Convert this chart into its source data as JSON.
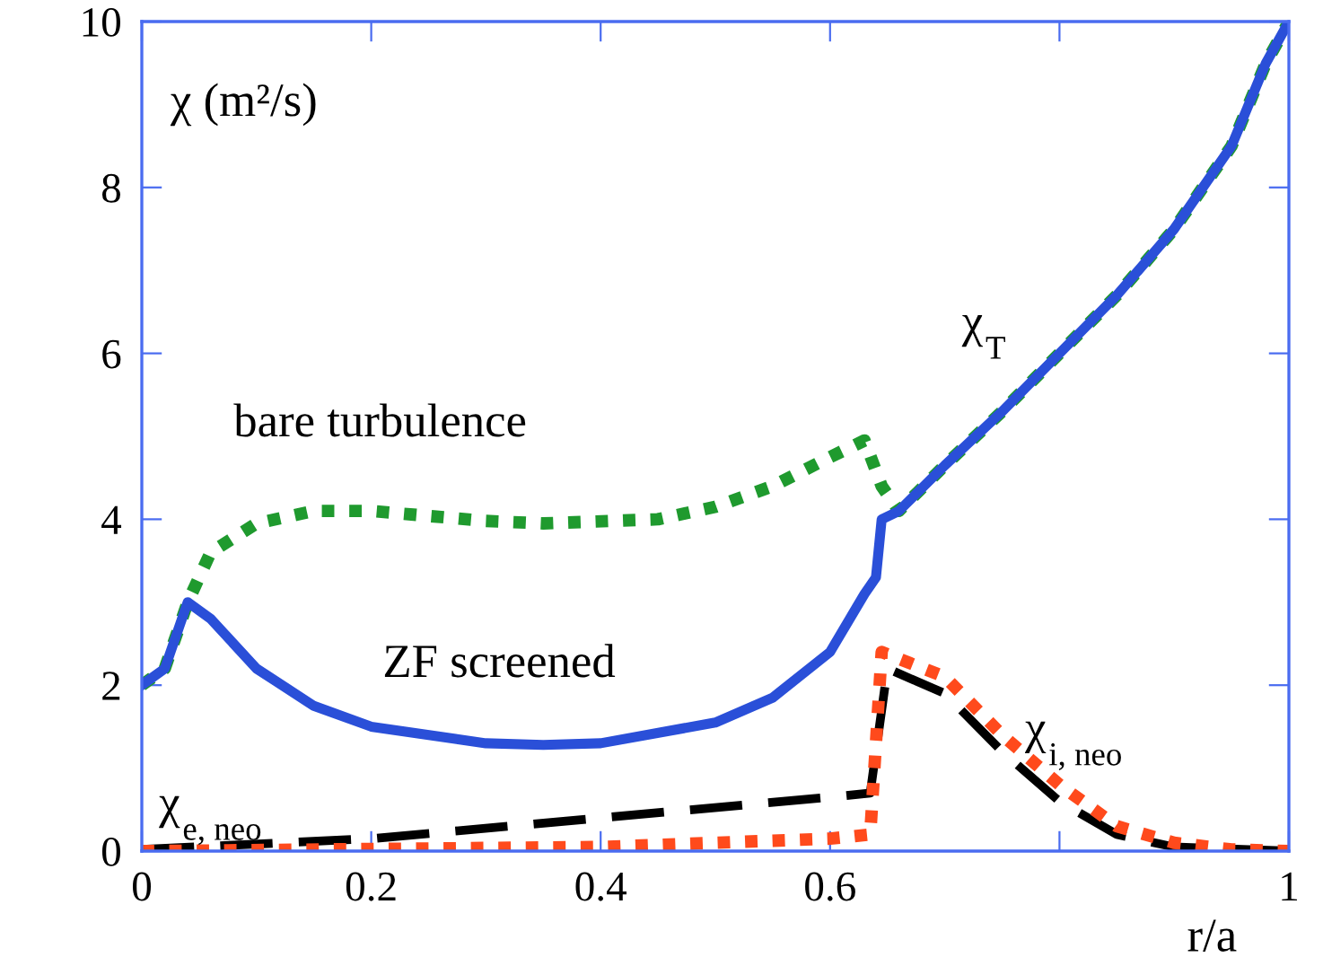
{
  "chart_data": {
    "type": "line",
    "xlabel": "r/a",
    "ylabel": "χ (m²/s)",
    "xlim": [
      0,
      1
    ],
    "ylim": [
      0,
      10
    ],
    "xticks": [
      0,
      0.2,
      0.4,
      0.6,
      {
        "value": 0.8,
        "label": null
      },
      1
    ],
    "yticks": [
      0,
      2,
      4,
      6,
      8,
      10
    ],
    "grid": false,
    "legend": false,
    "series": [
      {
        "color": "#1f9a2e",
        "line_style": "dotted",
        "x": [
          0,
          0.02,
          0.04,
          0.06,
          0.1,
          0.15,
          0.2,
          0.3,
          0.35,
          0.45,
          0.5,
          0.55,
          0.6,
          0.63,
          0.645,
          0.66,
          0.7,
          0.75,
          0.8,
          0.85,
          0.9,
          0.95,
          0.98,
          1.0
        ],
        "values": [
          2.0,
          2.2,
          3.0,
          3.6,
          3.95,
          4.1,
          4.1,
          3.98,
          3.95,
          4.0,
          4.15,
          4.4,
          4.75,
          4.95,
          4.4,
          4.1,
          4.65,
          5.3,
          6.0,
          6.7,
          7.5,
          8.5,
          9.5,
          10
        ]
      },
      {
        "color": "#2a4fd8",
        "line_style": "solid",
        "x": [
          0,
          0.02,
          0.04,
          0.06,
          0.1,
          0.15,
          0.2,
          0.3,
          0.35,
          0.4,
          0.5,
          0.55,
          0.6,
          0.63,
          0.64,
          0.645,
          0.66,
          0.7,
          0.75,
          0.8,
          0.85,
          0.9,
          0.95,
          0.98,
          1.0
        ],
        "values": [
          2.0,
          2.2,
          3.0,
          2.8,
          2.2,
          1.75,
          1.5,
          1.3,
          1.28,
          1.3,
          1.55,
          1.85,
          2.4,
          3.1,
          3.3,
          4.0,
          4.1,
          4.65,
          5.3,
          6.0,
          6.7,
          7.5,
          8.5,
          9.5,
          10
        ]
      },
      {
        "color": "#000000",
        "line_style": "dashed",
        "x": [
          0,
          0.2,
          0.4,
          0.6,
          0.635,
          0.65,
          0.7,
          0.75,
          0.8,
          0.85,
          0.9,
          1.0
        ],
        "values": [
          0.02,
          0.15,
          0.4,
          0.65,
          0.7,
          2.2,
          1.9,
          1.2,
          0.6,
          0.2,
          0.05,
          0
        ]
      },
      {
        "color": "#ff4a1c",
        "line_style": "dotted",
        "x": [
          0,
          0.4,
          0.6,
          0.635,
          0.645,
          0.7,
          0.75,
          0.8,
          0.85,
          0.9,
          0.95,
          1.0
        ],
        "values": [
          0,
          0.05,
          0.15,
          0.2,
          2.4,
          2.1,
          1.4,
          0.8,
          0.3,
          0.1,
          0.02,
          0
        ]
      }
    ],
    "annotations": [
      "bare turbulence",
      "ZF screened",
      "χ$_{T}$",
      "χ$_{e, neo}$",
      "χ$_{i, neo}$"
    ]
  }
}
